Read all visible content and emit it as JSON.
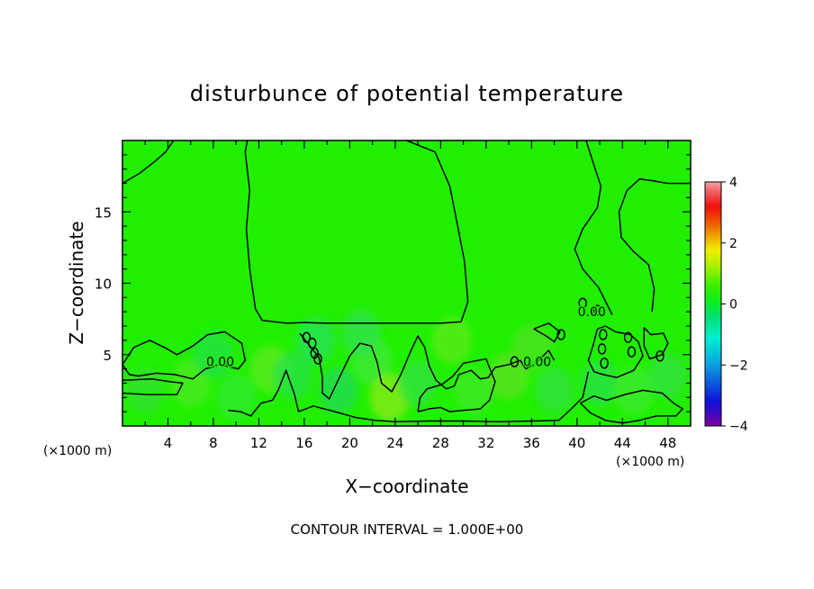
{
  "chart_data": {
    "type": "heatmap",
    "title": "disturbunce of potential temperature",
    "xlabel": "X−coordinate",
    "ylabel": "Z−coordinate",
    "x_unit_left": "(×1000 m)",
    "x_unit_right": "(×1000 m)",
    "footer": "CONTOUR INTERVAL = 1.000E+00",
    "xlim": [
      0,
      50
    ],
    "ylim": [
      0,
      20
    ],
    "x_ticks": [
      4,
      8,
      12,
      16,
      20,
      24,
      28,
      32,
      36,
      40,
      44,
      48
    ],
    "y_ticks": [
      5,
      10,
      15
    ],
    "contour_interval": 1.0,
    "contour_labels": [
      {
        "text": "0.00",
        "x": 8.6,
        "y": 4.5
      },
      {
        "text": "0.00",
        "x": 36.5,
        "y": 4.5
      },
      {
        "text": "0.00",
        "x": 41.3,
        "y": 8.0
      }
    ],
    "colorbar": {
      "range": [
        -4,
        4
      ],
      "ticks": [
        4,
        2,
        0,
        -2,
        -4
      ],
      "colors": [
        "#7a00a0",
        "#1010d8",
        "#0aa0e0",
        "#00f0d0",
        "#00e070",
        "#10f010",
        "#40f000",
        "#b0f000",
        "#f0f000",
        "#f0a000",
        "#f05000",
        "#f01010",
        "#f06060",
        "#f8a0a0"
      ]
    },
    "field_color": "#20f000",
    "zero_contours": [
      [
        [
          0,
          17.0
        ],
        [
          1.5,
          17.7
        ],
        [
          2.8,
          18.5
        ],
        [
          3.8,
          19.2
        ],
        [
          4.5,
          20
        ]
      ],
      [
        [
          11,
          20
        ],
        [
          10.8,
          19.2
        ],
        [
          11.2,
          16.5
        ],
        [
          10.9,
          13.8
        ],
        [
          11.2,
          11
        ],
        [
          11.7,
          8.2
        ],
        [
          12.3,
          7.4
        ],
        [
          14.5,
          7.2
        ],
        [
          16,
          7.25
        ],
        [
          18,
          7.2
        ],
        [
          22,
          7.2
        ],
        [
          26,
          7.2
        ],
        [
          28,
          7.2
        ],
        [
          29.8,
          7.3
        ],
        [
          30.4,
          8.7
        ],
        [
          30.1,
          11.5
        ],
        [
          29.5,
          14
        ],
        [
          28.8,
          16.8
        ],
        [
          27.5,
          19.2
        ],
        [
          25,
          20
        ]
      ],
      [
        [
          40.8,
          20
        ],
        [
          41.4,
          18.5
        ],
        [
          42.1,
          16.8
        ],
        [
          41.8,
          15.3
        ],
        [
          40.5,
          13.8
        ],
        [
          39.8,
          12.4
        ],
        [
          40.5,
          11.0
        ],
        [
          41.9,
          9.7
        ],
        [
          43.1,
          7.8
        ]
      ],
      [
        [
          50,
          17.0
        ],
        [
          48,
          17.0
        ],
        [
          46.5,
          17.2
        ],
        [
          45.5,
          17.3
        ],
        [
          44.4,
          16.5
        ],
        [
          43.7,
          15.0
        ],
        [
          43.9,
          13.2
        ],
        [
          45,
          12.2
        ],
        [
          46.3,
          11.3
        ],
        [
          46.8,
          9.6
        ],
        [
          46.6,
          8.0
        ]
      ],
      [
        [
          0,
          4.3
        ],
        [
          1.0,
          5.5
        ],
        [
          2.4,
          6.0
        ],
        [
          3.7,
          5.5
        ],
        [
          4.8,
          5.0
        ],
        [
          6.2,
          5.6
        ],
        [
          7.5,
          6.4
        ],
        [
          9.0,
          6.6
        ],
        [
          10.5,
          5.8
        ],
        [
          10.8,
          4.6
        ],
        [
          10.2,
          4.0
        ],
        [
          8.6,
          4.3
        ],
        [
          7.3,
          4.0
        ],
        [
          6.2,
          3.3
        ],
        [
          4.6,
          3.6
        ],
        [
          3.0,
          3.7
        ],
        [
          1.4,
          3.5
        ],
        [
          0.6,
          3.6
        ],
        [
          0,
          4.3
        ]
      ],
      [
        [
          0,
          2.3
        ],
        [
          2.2,
          2.2
        ],
        [
          4.8,
          2.2
        ],
        [
          5.3,
          3.0
        ],
        [
          4.2,
          3.1
        ],
        [
          2.6,
          3.3
        ],
        [
          0,
          3.2
        ]
      ],
      [
        [
          9.3,
          1.1
        ],
        [
          10.4,
          1.0
        ],
        [
          11.3,
          0.7
        ],
        [
          12.2,
          1.6
        ],
        [
          13.2,
          1.8
        ],
        [
          13.7,
          2.5
        ],
        [
          14.4,
          3.9
        ],
        [
          15.1,
          2.3
        ],
        [
          15.5,
          1.0
        ],
        [
          16.8,
          1.4
        ],
        [
          18.7,
          1.0
        ],
        [
          20.5,
          0.6
        ],
        [
          22.2,
          0.4
        ],
        [
          24,
          0.3
        ],
        [
          27,
          0.35
        ],
        [
          30,
          0.35
        ],
        [
          33,
          0.3
        ],
        [
          36,
          0.35
        ],
        [
          38.4,
          0.4
        ],
        [
          39.5,
          1.2
        ],
        [
          40.5,
          2.0
        ],
        [
          41.0,
          3.8
        ]
      ],
      [
        [
          15.6,
          6.5
        ],
        [
          16.5,
          5.6
        ],
        [
          17.3,
          4.8
        ],
        [
          17.6,
          3.4
        ],
        [
          17.6,
          2.3
        ],
        [
          18.2,
          1.9
        ],
        [
          19.1,
          3.4
        ],
        [
          20.0,
          4.9
        ],
        [
          20.9,
          5.8
        ],
        [
          21.9,
          5.6
        ],
        [
          22.4,
          4.5
        ],
        [
          22.8,
          3.0
        ],
        [
          23.7,
          2.4
        ],
        [
          24.5,
          3.6
        ],
        [
          25.4,
          5.3
        ],
        [
          26.0,
          6.3
        ],
        [
          26.6,
          5.5
        ],
        [
          27.0,
          4.2
        ],
        [
          27.6,
          3.2
        ],
        [
          28.5,
          2.6
        ],
        [
          29.2,
          2.8
        ],
        [
          29.6,
          3.6
        ],
        [
          30.7,
          3.9
        ],
        [
          31.5,
          3.3
        ],
        [
          32.2,
          3.4
        ],
        [
          32.8,
          4.1
        ],
        [
          34.0,
          4.3
        ],
        [
          35.0,
          4.6
        ],
        [
          35.5,
          4.0
        ],
        [
          36.5,
          4.5
        ],
        [
          37.5,
          5.3
        ],
        [
          38.0,
          4.6
        ]
      ],
      [
        [
          26.0,
          1.0
        ],
        [
          27.0,
          1.2
        ],
        [
          28.0,
          1.3
        ],
        [
          28.8,
          1.0
        ],
        [
          30.0,
          1.1
        ],
        [
          31.5,
          1.2
        ],
        [
          32.3,
          1.8
        ],
        [
          32.8,
          3.1
        ],
        [
          32.0,
          4.7
        ],
        [
          30.0,
          4.4
        ],
        [
          29.1,
          3.5
        ],
        [
          28.1,
          2.9
        ],
        [
          26.8,
          2.6
        ],
        [
          26.2,
          2.0
        ],
        [
          26.0,
          1.0
        ]
      ],
      [
        [
          40.3,
          1.6
        ],
        [
          41.5,
          2.1
        ],
        [
          42.6,
          1.8
        ],
        [
          44.2,
          2.2
        ],
        [
          45.8,
          2.5
        ],
        [
          47.5,
          2.3
        ],
        [
          48.5,
          1.6
        ],
        [
          49.3,
          1.2
        ],
        [
          48.7,
          0.7
        ],
        [
          47.0,
          0.7
        ],
        [
          45.5,
          0.4
        ],
        [
          44,
          0.2
        ],
        [
          42.5,
          0.4
        ],
        [
          41.2,
          0.9
        ],
        [
          40.3,
          1.6
        ]
      ],
      [
        [
          41.8,
          6.8
        ],
        [
          41.4,
          5.6
        ],
        [
          41.0,
          4.6
        ],
        [
          41.5,
          3.8
        ],
        [
          42.3,
          3.6
        ],
        [
          43.5,
          3.4
        ],
        [
          45.0,
          3.9
        ],
        [
          45.8,
          4.9
        ],
        [
          45.4,
          5.9
        ],
        [
          44.7,
          6.4
        ],
        [
          43.4,
          6.6
        ],
        [
          42.5,
          7.0
        ],
        [
          41.8,
          6.8
        ]
      ],
      [
        [
          45.9,
          6.9
        ],
        [
          46.5,
          6.4
        ],
        [
          47.6,
          6.5
        ],
        [
          48.0,
          5.8
        ],
        [
          47.5,
          5.0
        ],
        [
          46.4,
          4.7
        ],
        [
          45.9,
          5.6
        ],
        [
          45.9,
          6.9
        ]
      ],
      [
        [
          36.2,
          6.8
        ],
        [
          37.3,
          6.3
        ],
        [
          38.0,
          5.9
        ],
        [
          38.5,
          6.6
        ],
        [
          37.5,
          7.2
        ],
        [
          36.2,
          6.8
        ]
      ]
    ],
    "small_rings": [
      [
        16.2,
        6.2
      ],
      [
        16.7,
        5.8
      ],
      [
        16.9,
        5.1
      ],
      [
        17.2,
        4.7
      ],
      [
        34.5,
        4.5
      ],
      [
        38.6,
        6.4
      ],
      [
        40.5,
        8.6
      ],
      [
        41.8,
        8.1
      ],
      [
        42.3,
        6.4
      ],
      [
        42.2,
        5.4
      ],
      [
        42.4,
        4.4
      ],
      [
        44.5,
        6.2
      ],
      [
        44.8,
        5.2
      ],
      [
        47.3,
        4.9
      ]
    ]
  }
}
